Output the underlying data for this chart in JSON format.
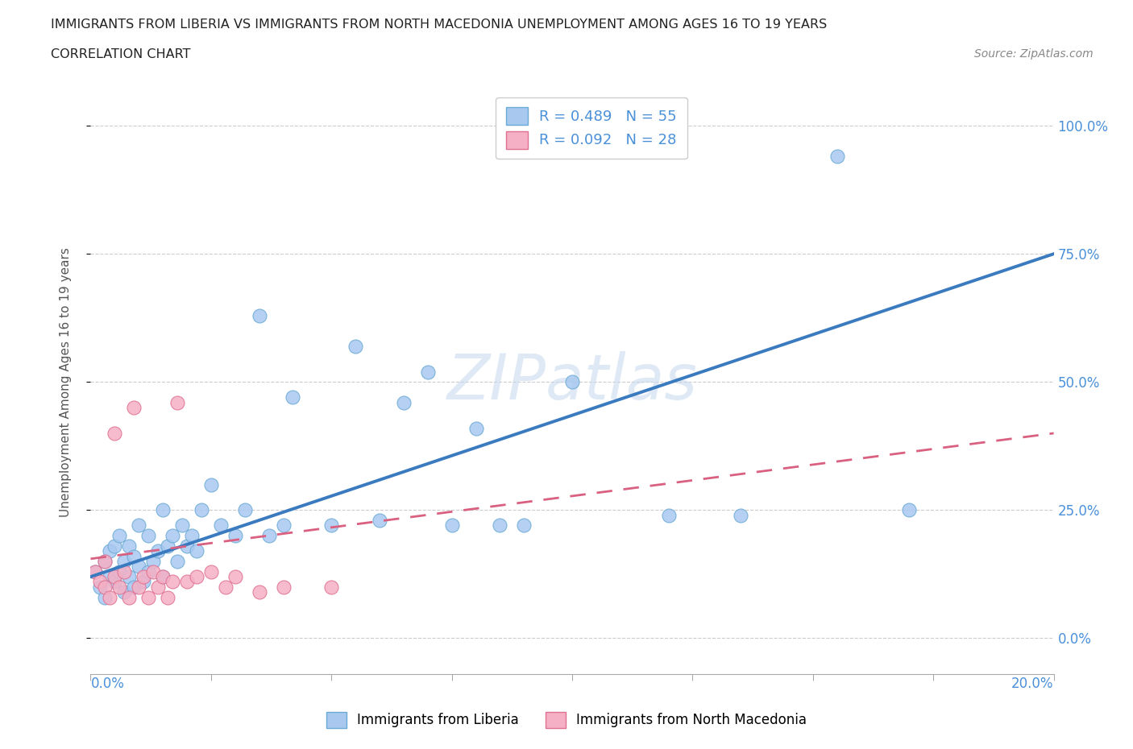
{
  "title_line1": "IMMIGRANTS FROM LIBERIA VS IMMIGRANTS FROM NORTH MACEDONIA UNEMPLOYMENT AMONG AGES 16 TO 19 YEARS",
  "title_line2": "CORRELATION CHART",
  "source": "Source: ZipAtlas.com",
  "ylabel": "Unemployment Among Ages 16 to 19 years",
  "yticks": [
    "0.0%",
    "25.0%",
    "50.0%",
    "75.0%",
    "100.0%"
  ],
  "ytick_vals": [
    0.0,
    0.25,
    0.5,
    0.75,
    1.0
  ],
  "xmin": 0.0,
  "xmax": 0.2,
  "ymin": -0.07,
  "ymax": 1.07,
  "R_liberia": 0.489,
  "N_liberia": 55,
  "R_macedonia": 0.092,
  "N_macedonia": 28,
  "color_liberia": "#a8c8f0",
  "color_liberia_edge": "#6aaad4",
  "color_macedonia": "#f5b0c5",
  "color_macedonia_edge": "#e07090",
  "color_trendline_liberia": "#3a7abf",
  "color_trendline_macedonia": "#d96080",
  "legend_R_color": "#4a90d9",
  "blue_trend_x0": 0.0,
  "blue_trend_y0": 0.12,
  "blue_trend_x1": 0.2,
  "blue_trend_y1": 0.75,
  "pink_trend_x0": 0.0,
  "pink_trend_y0": 0.155,
  "pink_trend_x1": 0.2,
  "pink_trend_y1": 0.4,
  "blue_scatter_x": [
    0.001,
    0.002,
    0.003,
    0.003,
    0.004,
    0.004,
    0.005,
    0.005,
    0.006,
    0.006,
    0.007,
    0.007,
    0.008,
    0.008,
    0.009,
    0.009,
    0.01,
    0.01,
    0.011,
    0.012,
    0.012,
    0.013,
    0.014,
    0.015,
    0.015,
    0.016,
    0.017,
    0.018,
    0.019,
    0.02,
    0.021,
    0.022,
    0.023,
    0.025,
    0.027,
    0.03,
    0.032,
    0.035,
    0.037,
    0.04,
    0.042,
    0.05,
    0.055,
    0.06,
    0.065,
    0.07,
    0.075,
    0.08,
    0.085,
    0.09,
    0.1,
    0.12,
    0.135,
    0.155,
    0.17
  ],
  "blue_scatter_y": [
    0.13,
    0.1,
    0.15,
    0.08,
    0.12,
    0.17,
    0.11,
    0.18,
    0.13,
    0.2,
    0.09,
    0.15,
    0.12,
    0.18,
    0.1,
    0.16,
    0.14,
    0.22,
    0.11,
    0.13,
    0.2,
    0.15,
    0.17,
    0.12,
    0.25,
    0.18,
    0.2,
    0.15,
    0.22,
    0.18,
    0.2,
    0.17,
    0.25,
    0.3,
    0.22,
    0.2,
    0.25,
    0.63,
    0.2,
    0.22,
    0.47,
    0.22,
    0.57,
    0.23,
    0.46,
    0.52,
    0.22,
    0.41,
    0.22,
    0.22,
    0.5,
    0.24,
    0.24,
    0.94,
    0.25
  ],
  "pink_scatter_x": [
    0.001,
    0.002,
    0.003,
    0.003,
    0.004,
    0.005,
    0.005,
    0.006,
    0.007,
    0.008,
    0.009,
    0.01,
    0.011,
    0.012,
    0.013,
    0.014,
    0.015,
    0.016,
    0.017,
    0.018,
    0.02,
    0.022,
    0.025,
    0.028,
    0.03,
    0.035,
    0.04,
    0.05
  ],
  "pink_scatter_y": [
    0.13,
    0.11,
    0.1,
    0.15,
    0.08,
    0.12,
    0.4,
    0.1,
    0.13,
    0.08,
    0.45,
    0.1,
    0.12,
    0.08,
    0.13,
    0.1,
    0.12,
    0.08,
    0.11,
    0.46,
    0.11,
    0.12,
    0.13,
    0.1,
    0.12,
    0.09,
    0.1,
    0.1
  ]
}
